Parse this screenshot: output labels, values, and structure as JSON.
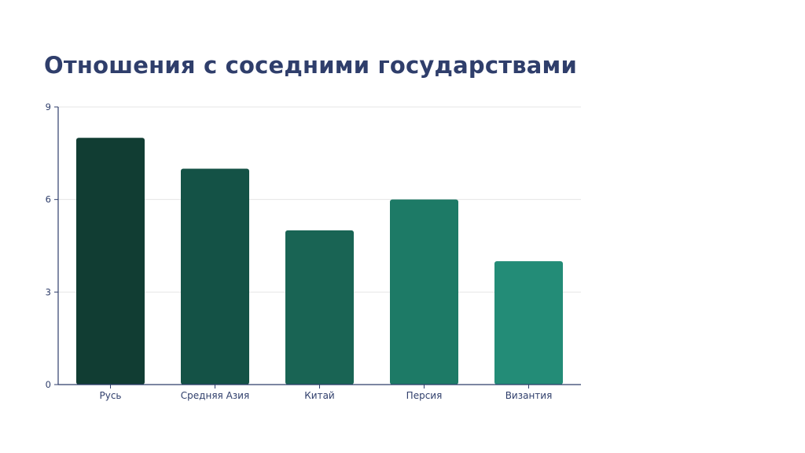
{
  "slide": {
    "title": "Отношения с соседними государствами"
  },
  "chart_data": {
    "type": "bar",
    "title": "",
    "xlabel": "",
    "ylabel": "",
    "categories": [
      "Русь",
      "Средняя Азия",
      "Китай",
      "Персия",
      "Византия"
    ],
    "values": [
      8,
      7,
      5,
      6,
      4
    ],
    "ylim": [
      0,
      9
    ],
    "yticks": [
      0,
      3,
      6,
      9
    ],
    "grid": true,
    "legend": "none",
    "colors": [
      "#113d33",
      "#145246",
      "#196454",
      "#1d7a66",
      "#238c77"
    ],
    "axis_color": "#2f3e6b",
    "grid_color": "#e6e6e6"
  }
}
